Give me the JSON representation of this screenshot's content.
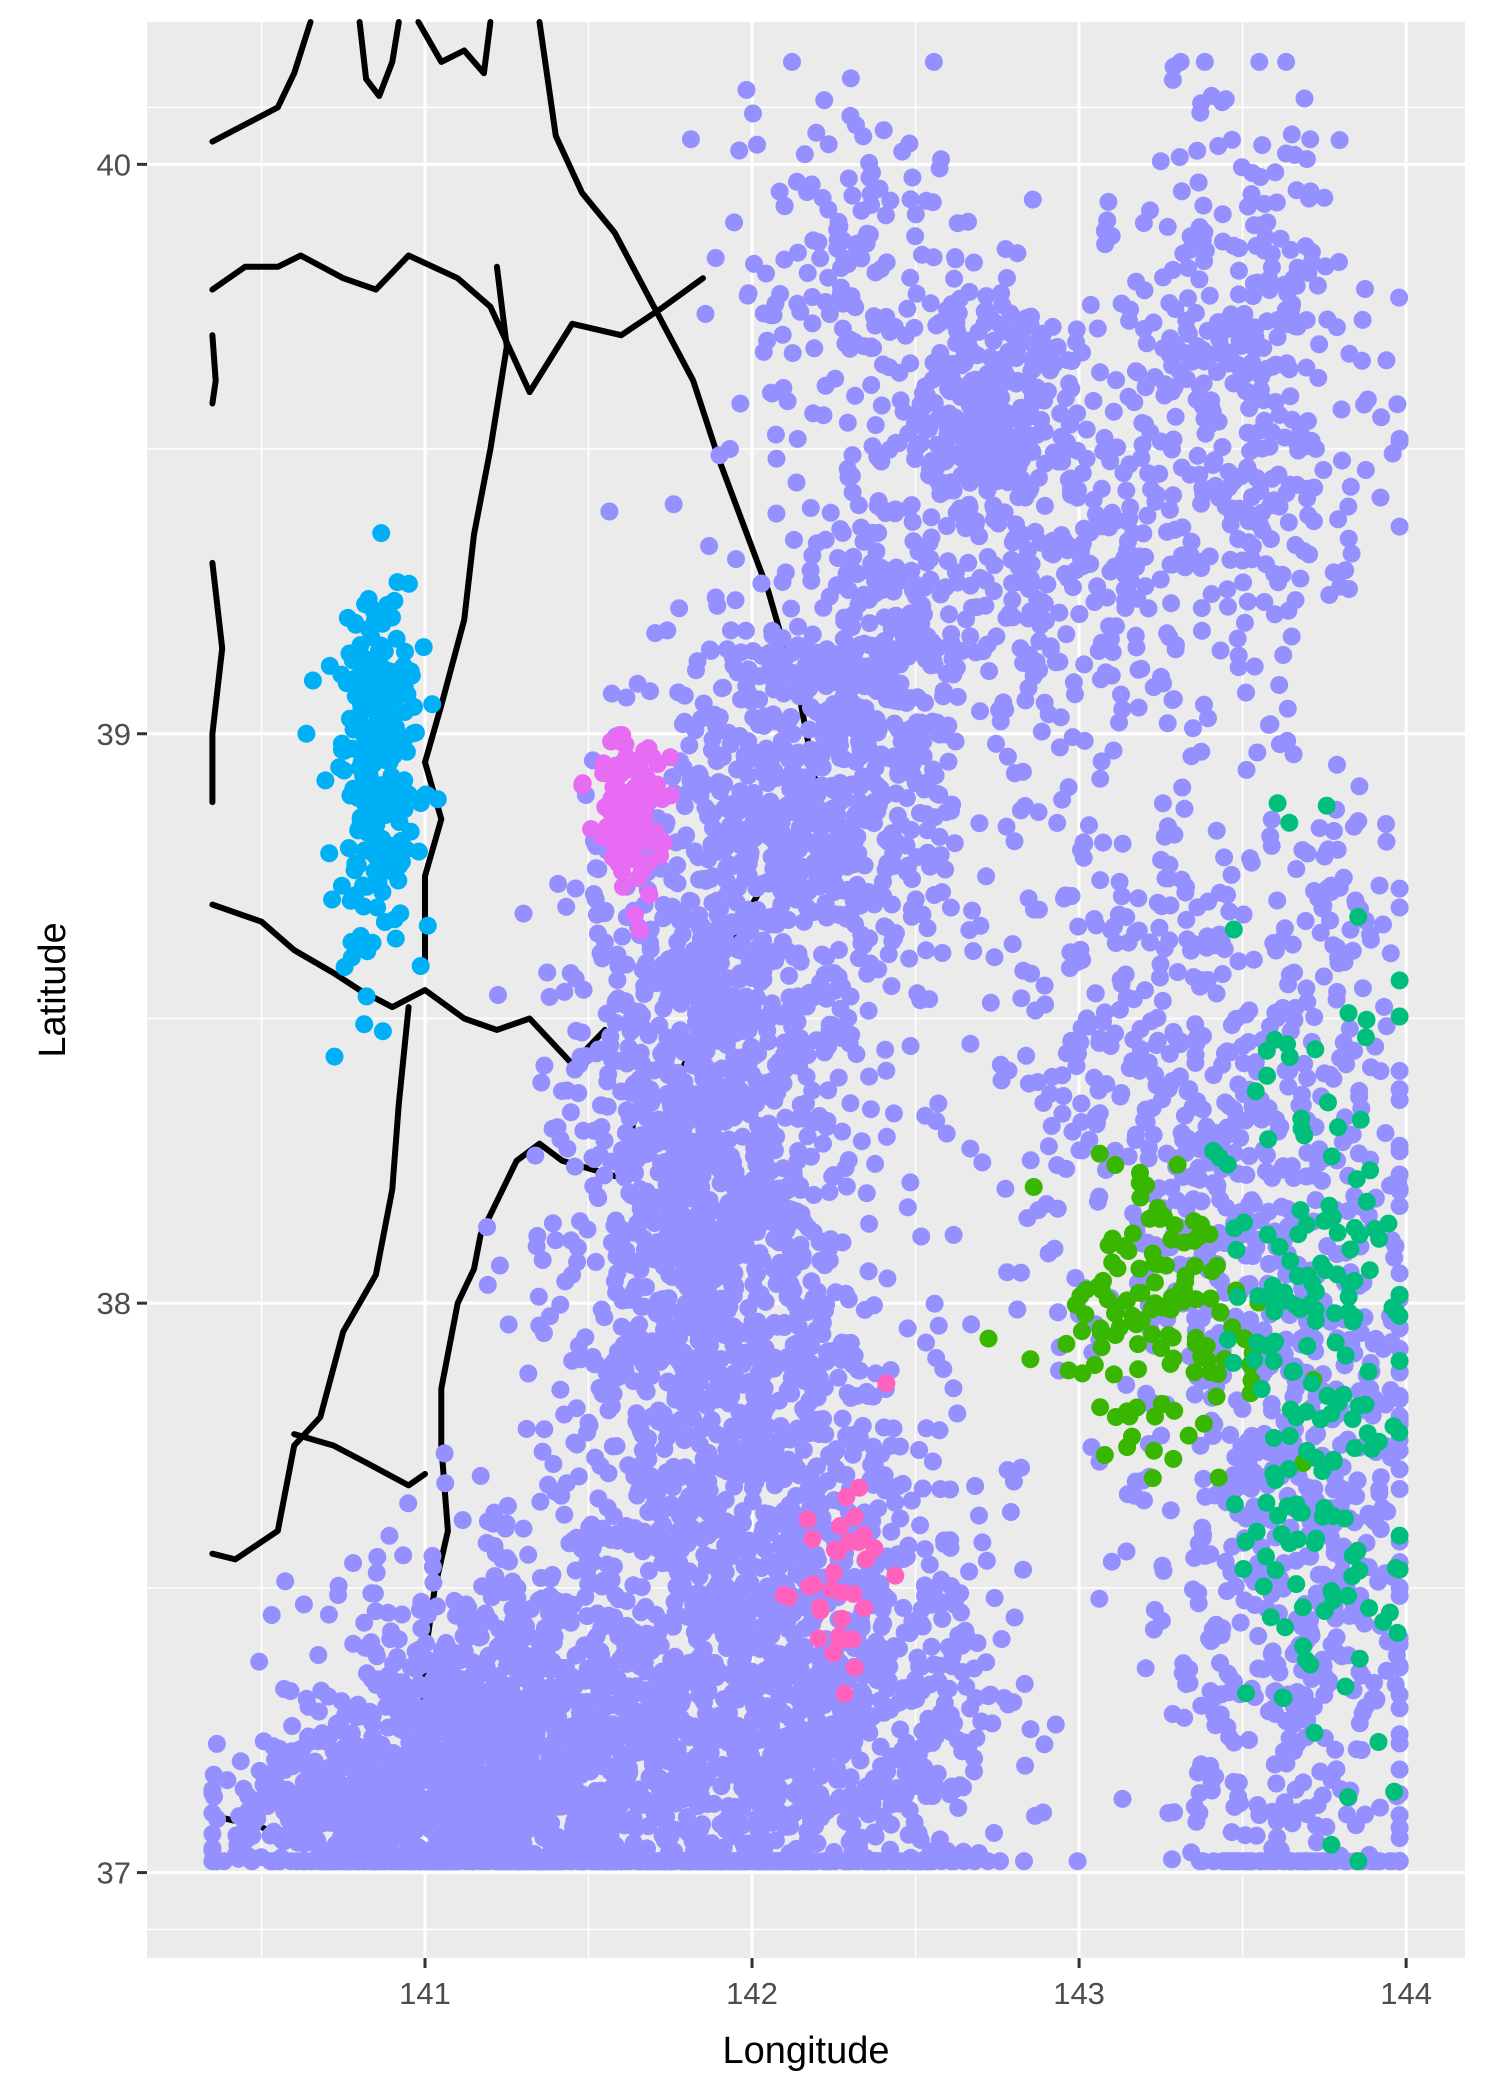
{
  "chart_data": {
    "type": "scatter",
    "title": "",
    "xlabel": "Longitude",
    "ylabel": "Latitude",
    "xlim": [
      140.15,
      144.18
    ],
    "ylim": [
      36.85,
      40.25
    ],
    "x_ticks": [
      141,
      142,
      143,
      144
    ],
    "y_ticks": [
      37,
      38,
      39,
      40
    ],
    "x_tick_labels": [
      "141",
      "142",
      "143",
      "144"
    ],
    "y_tick_labels": [
      "37",
      "38",
      "39",
      "40"
    ],
    "grid": true,
    "legend": "none",
    "colors": {
      "panel": "#ebebeb",
      "grid": "#ffffff",
      "coastline": "#000000",
      "main": "#9590ff",
      "blue": "#00b0f6",
      "violet": "#e76bf3",
      "pink": "#ff62bc",
      "green": "#39b600",
      "teal": "#00bf7d"
    },
    "series": [
      {
        "color": "#9590ff",
        "clusters": [
          {
            "cx": 141.25,
            "cy": 37.2,
            "sx": 0.28,
            "sy": 0.16,
            "n": 1300
          },
          {
            "cx": 140.75,
            "cy": 37.1,
            "sx": 0.2,
            "sy": 0.07,
            "n": 320
          },
          {
            "cx": 141.95,
            "cy": 37.5,
            "sx": 0.28,
            "sy": 0.4,
            "n": 1300
          },
          {
            "cx": 142.3,
            "cy": 37.25,
            "sx": 0.25,
            "sy": 0.2,
            "n": 500
          },
          {
            "cx": 141.85,
            "cy": 38.3,
            "sx": 0.22,
            "sy": 0.28,
            "n": 1000
          },
          {
            "cx": 142.1,
            "cy": 38.85,
            "sx": 0.18,
            "sy": 0.22,
            "n": 420
          },
          {
            "cx": 142.4,
            "cy": 39.05,
            "sx": 0.13,
            "sy": 0.22,
            "n": 380
          },
          {
            "cx": 142.3,
            "cy": 39.8,
            "sx": 0.2,
            "sy": 0.17,
            "n": 160
          },
          {
            "cx": 142.7,
            "cy": 39.55,
            "sx": 0.12,
            "sy": 0.13,
            "n": 260
          },
          {
            "cx": 142.95,
            "cy": 39.3,
            "sx": 0.2,
            "sy": 0.2,
            "n": 220
          },
          {
            "cx": 143.5,
            "cy": 39.6,
            "sx": 0.2,
            "sy": 0.25,
            "n": 380
          },
          {
            "cx": 143.2,
            "cy": 38.4,
            "sx": 0.28,
            "sy": 0.28,
            "n": 380
          },
          {
            "cx": 143.65,
            "cy": 37.7,
            "sx": 0.22,
            "sy": 0.45,
            "n": 750
          },
          {
            "cx": 143.85,
            "cy": 38.7,
            "sx": 0.08,
            "sy": 0.1,
            "n": 30
          }
        ]
      },
      {
        "color": "#00b0f6",
        "clusters": [
          {
            "cx": 140.85,
            "cy": 38.95,
            "sx": 0.07,
            "sy": 0.16,
            "n": 260
          }
        ]
      },
      {
        "color": "#e76bf3",
        "clusters": [
          {
            "cx": 141.63,
            "cy": 38.84,
            "sx": 0.05,
            "sy": 0.08,
            "n": 110
          }
        ]
      },
      {
        "color": "#ff62bc",
        "clusters": [
          {
            "cx": 142.25,
            "cy": 37.5,
            "sx": 0.08,
            "sy": 0.14,
            "n": 35
          }
        ]
      },
      {
        "color": "#39b600",
        "clusters": [
          {
            "cx": 143.25,
            "cy": 37.98,
            "sx": 0.15,
            "sy": 0.12,
            "n": 130
          }
        ]
      },
      {
        "color": "#00bf7d",
        "clusters": [
          {
            "cx": 143.7,
            "cy": 37.9,
            "sx": 0.15,
            "sy": 0.35,
            "n": 180
          }
        ]
      }
    ],
    "coastlines": [
      [
        [
          140.35,
          40.04
        ],
        [
          140.45,
          40.07
        ],
        [
          140.55,
          40.1
        ],
        [
          140.6,
          40.16
        ],
        [
          140.65,
          40.25
        ]
      ],
      [
        [
          140.8,
          40.25
        ],
        [
          140.82,
          40.15
        ],
        [
          140.86,
          40.12
        ],
        [
          140.9,
          40.18
        ],
        [
          140.92,
          40.25
        ]
      ],
      [
        [
          140.98,
          40.25
        ],
        [
          141.05,
          40.18
        ],
        [
          141.12,
          40.2
        ],
        [
          141.18,
          40.16
        ],
        [
          141.2,
          40.25
        ]
      ],
      [
        [
          141.35,
          40.25
        ],
        [
          141.4,
          40.05
        ],
        [
          141.48,
          39.95
        ],
        [
          141.58,
          39.88
        ],
        [
          141.7,
          39.75
        ],
        [
          141.82,
          39.62
        ],
        [
          141.9,
          39.48
        ],
        [
          142.05,
          39.25
        ],
        [
          142.15,
          39.05
        ],
        [
          142.2,
          38.9
        ],
        [
          142.15,
          38.82
        ],
        [
          142.02,
          38.72
        ],
        [
          141.9,
          38.6
        ],
        [
          141.82,
          38.45
        ],
        [
          141.75,
          38.37
        ],
        [
          141.65,
          38.35
        ],
        [
          141.6,
          38.22
        ],
        [
          141.42,
          38.25
        ],
        [
          141.35,
          38.28
        ],
        [
          141.28,
          38.25
        ],
        [
          141.17,
          38.12
        ],
        [
          141.15,
          38.06
        ],
        [
          141.1,
          38.0
        ],
        [
          141.05,
          37.85
        ],
        [
          141.05,
          37.75
        ],
        [
          141.07,
          37.6
        ],
        [
          141.03,
          37.5
        ],
        [
          141.0,
          37.38
        ],
        [
          140.99,
          37.25
        ]
      ],
      [
        [
          140.35,
          39.78
        ],
        [
          140.45,
          39.82
        ],
        [
          140.55,
          39.82
        ],
        [
          140.62,
          39.84
        ],
        [
          140.75,
          39.8
        ],
        [
          140.85,
          39.78
        ],
        [
          140.95,
          39.84
        ],
        [
          141.1,
          39.8
        ],
        [
          141.2,
          39.75
        ],
        [
          141.32,
          39.6
        ],
        [
          141.45,
          39.72
        ],
        [
          141.6,
          39.7
        ],
        [
          141.73,
          39.75
        ],
        [
          141.85,
          39.8
        ]
      ],
      [
        [
          141.22,
          39.82
        ],
        [
          141.25,
          39.68
        ],
        [
          141.2,
          39.5
        ],
        [
          141.15,
          39.35
        ],
        [
          141.12,
          39.2
        ],
        [
          141.05,
          39.05
        ],
        [
          141.0,
          38.95
        ],
        [
          141.05,
          38.85
        ],
        [
          141.0,
          38.75
        ],
        [
          141.0,
          38.6
        ]
      ],
      [
        [
          140.35,
          38.7
        ],
        [
          140.5,
          38.67
        ],
        [
          140.6,
          38.62
        ],
        [
          140.72,
          38.58
        ],
        [
          140.8,
          38.55
        ],
        [
          140.9,
          38.52
        ],
        [
          141.0,
          38.55
        ],
        [
          141.12,
          38.5
        ],
        [
          141.22,
          38.48
        ],
        [
          141.32,
          38.5
        ],
        [
          141.45,
          38.42
        ],
        [
          141.55,
          38.48
        ]
      ],
      [
        [
          140.95,
          38.52
        ],
        [
          140.92,
          38.35
        ],
        [
          140.9,
          38.2
        ],
        [
          140.85,
          38.05
        ],
        [
          140.75,
          37.95
        ],
        [
          140.68,
          37.8
        ],
        [
          140.6,
          37.75
        ],
        [
          140.55,
          37.6
        ],
        [
          140.42,
          37.55
        ],
        [
          140.35,
          37.56
        ]
      ],
      [
        [
          140.6,
          37.77
        ],
        [
          140.72,
          37.75
        ],
        [
          140.82,
          37.72
        ],
        [
          140.95,
          37.68
        ],
        [
          141.0,
          37.7
        ]
      ],
      [
        [
          140.35,
          37.1
        ],
        [
          140.5,
          37.08
        ],
        [
          140.6,
          37.05
        ],
        [
          140.7,
          37.08
        ]
      ],
      [
        [
          140.35,
          39.3
        ],
        [
          140.38,
          39.15
        ],
        [
          140.35,
          39.0
        ],
        [
          140.35,
          38.88
        ]
      ],
      [
        [
          140.35,
          39.7
        ],
        [
          140.36,
          39.62
        ],
        [
          140.35,
          39.58
        ]
      ]
    ]
  }
}
